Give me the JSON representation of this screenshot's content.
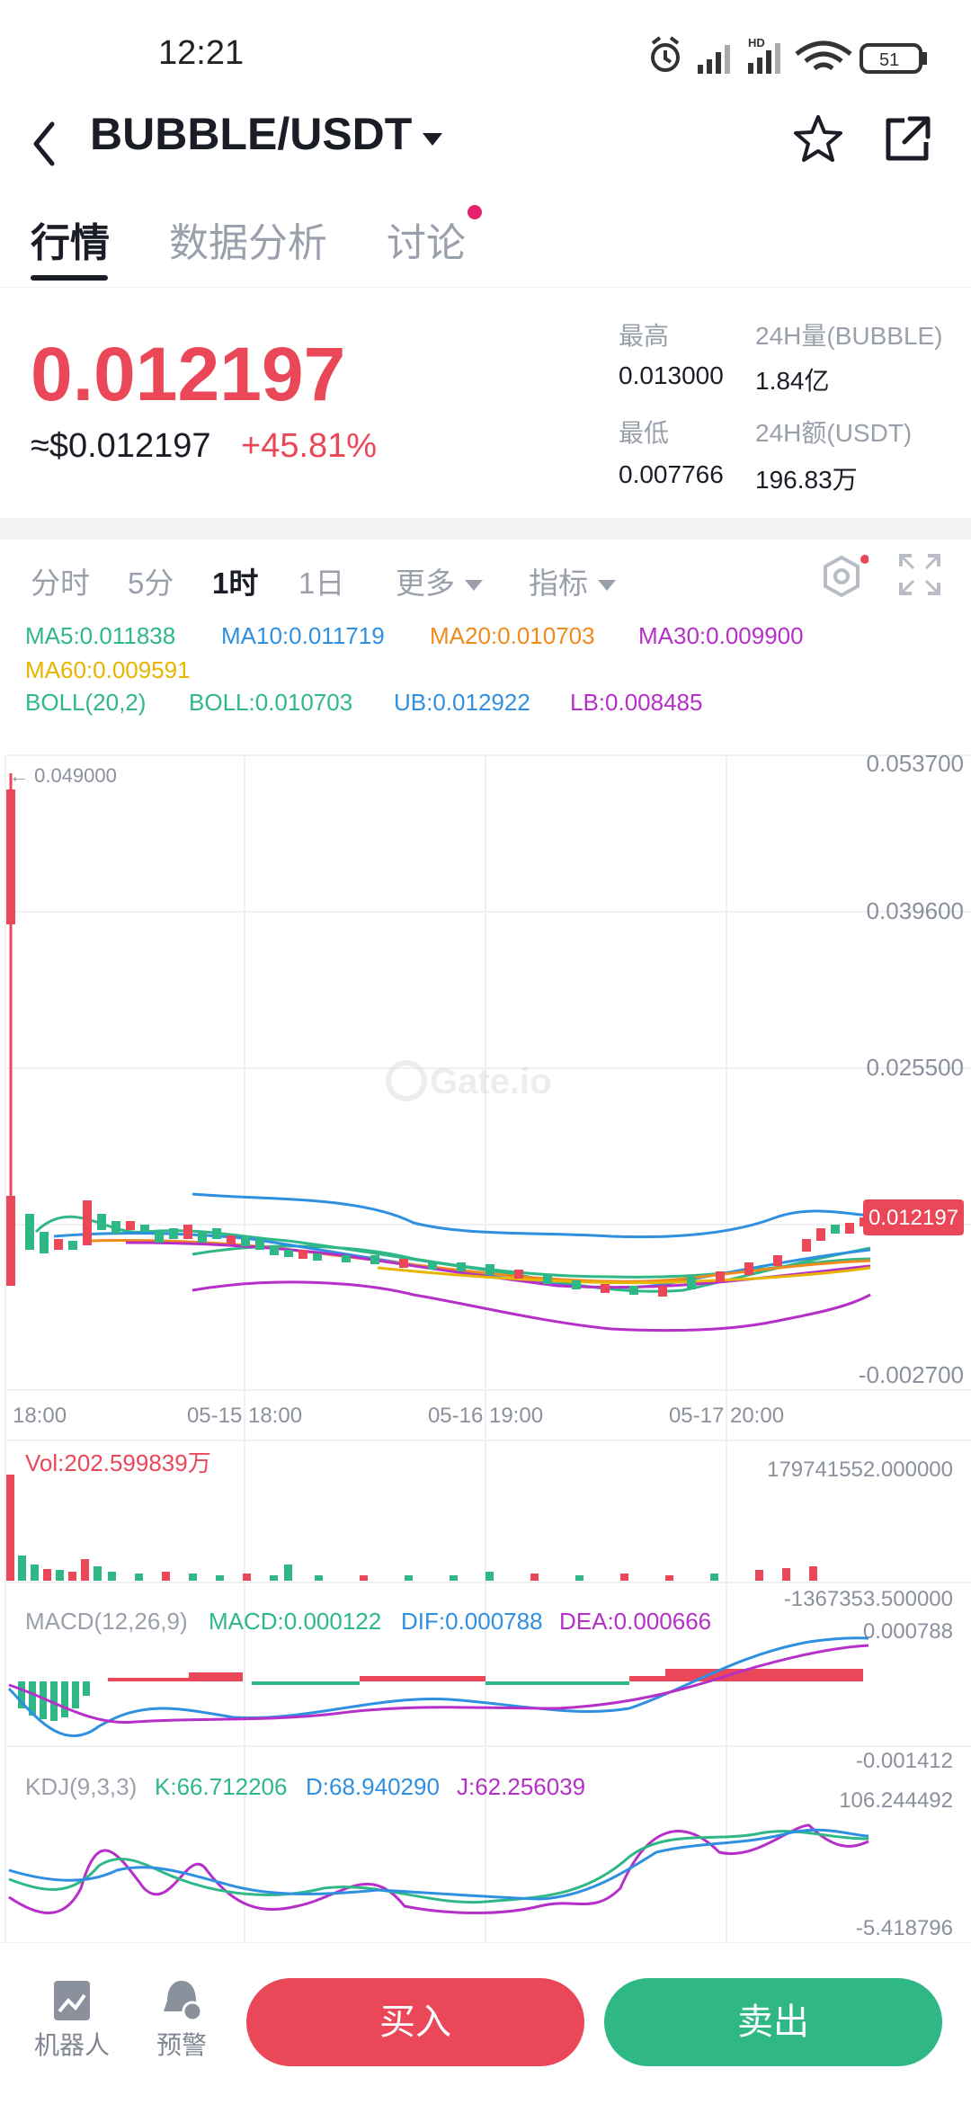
{
  "status_bar": {
    "time": "12:21",
    "battery": "51",
    "hd_label": "HD"
  },
  "header": {
    "title": "BUBBLE/USDT"
  },
  "tabs": [
    {
      "label": "行情"
    },
    {
      "label": "数据分析"
    },
    {
      "label": "讨论"
    }
  ],
  "ticker": {
    "price": "0.012197",
    "usd_price": "≈$0.012197",
    "change": "+45.81%",
    "high_label": "最高",
    "high_value": "0.013000",
    "low_label": "最低",
    "low_value": "0.007766",
    "vol_label": "24H量(BUBBLE)",
    "vol_value": "1.84亿",
    "amount_label": "24H额(USDT)",
    "amount_value": "196.83万"
  },
  "intervals": [
    {
      "label": "分时"
    },
    {
      "label": "5分"
    },
    {
      "label": "1时"
    },
    {
      "label": "1日"
    },
    {
      "label": "更多"
    },
    {
      "label": "指标"
    }
  ],
  "indicators": {
    "ma5": "MA5:0.011838",
    "ma10": "MA10:0.011719",
    "ma20": "MA20:0.010703",
    "ma30": "MA30:0.009900",
    "ma60": "MA60:0.009591",
    "boll_params": "BOLL(20,2)",
    "boll": "BOLL:0.010703",
    "ub": "UB:0.012922",
    "lb": "LB:0.008485"
  },
  "colors": {
    "up": "#ea4759",
    "down": "#2fb886",
    "ma5": "#2fb886",
    "ma10": "#2f8fe0",
    "ma20": "#f08a1c",
    "ma30": "#b52fc8",
    "ma60": "#e8b400"
  },
  "chart": {
    "y_ticks": [
      "0.053700",
      "0.039600",
      "0.025500",
      "-0.002700"
    ],
    "x_ticks": [
      "18:00",
      "05-15 18:00",
      "05-16 19:00",
      "05-17 20:00"
    ],
    "high_marker": "← 0.049000",
    "current_price": "0.012197",
    "watermark": "Gate.io"
  },
  "volume": {
    "label": "Vol:202.599839万",
    "top_value": "179741552.000000",
    "bottom_value": "-1367353.500000"
  },
  "macd": {
    "params": "MACD(12,26,9)",
    "macd": "MACD:0.000122",
    "dif": "DIF:0.000788",
    "dea": "DEA:0.000666",
    "top_value": "0.000788",
    "bottom_value": "-0.001412"
  },
  "kdj": {
    "params": "KDJ(9,3,3)",
    "k": "K:66.712206",
    "d": "D:68.940290",
    "j": "J:62.256039",
    "top_value": "106.244492",
    "bottom_value": "-5.418796"
  },
  "bottom": {
    "robot_label": "机器人",
    "alert_label": "预警",
    "buy_label": "买入",
    "sell_label": "卖出"
  }
}
